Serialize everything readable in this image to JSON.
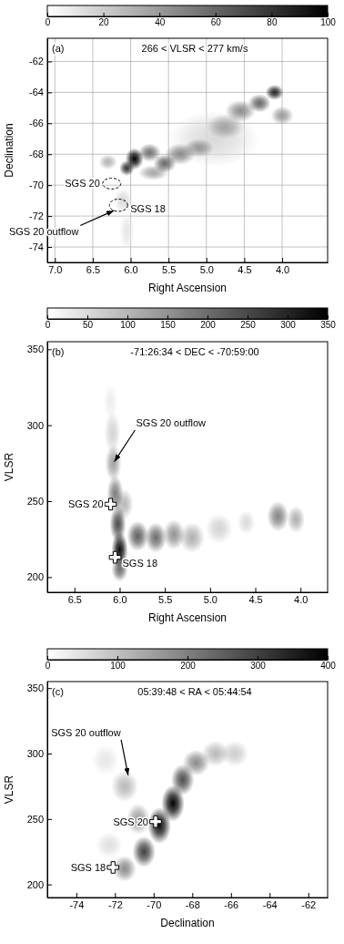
{
  "chart_data": [
    {
      "type": "heatmap",
      "panel_label": "(a)",
      "subtitle": "266 < VLSR < 277 km/s",
      "x_label": "Right Ascension",
      "y_label": "Declination",
      "xlim": [
        7.1,
        3.4
      ],
      "xticks": [
        {
          "value": 7,
          "label": "7.0"
        },
        6.5,
        {
          "value": 6,
          "label": "6.0"
        },
        5.5,
        {
          "value": 5,
          "label": "5.0"
        },
        4.5,
        {
          "value": 4,
          "label": "4.0"
        }
      ],
      "ylim": [
        -75,
        -60.5
      ],
      "yticks": [
        -74,
        -72,
        -70,
        -68,
        -66,
        -64,
        -62
      ],
      "grid": true,
      "colorbar": {
        "range": [
          0,
          100
        ],
        "ticks": [
          0,
          20,
          40,
          60,
          80,
          100
        ]
      },
      "clouds": {
        "x": [
          5.95,
          6.05,
          5.75,
          5.55,
          5.35,
          5.1,
          5.7,
          4.1,
          4.3,
          4.55,
          4.0,
          4.75,
          6.1,
          6.05,
          4.9,
          6.3
        ],
        "y": [
          -68.3,
          -68.9,
          -67.9,
          -68.6,
          -68,
          -67.6,
          -69.2,
          -64,
          -64.7,
          -65.2,
          -65.5,
          -66.2,
          -71,
          -73,
          -67,
          -68.5
        ],
        "x_width": [
          0.12,
          0.1,
          0.15,
          0.15,
          0.2,
          0.2,
          0.2,
          0.12,
          0.15,
          0.2,
          0.15,
          0.25,
          0.12,
          0.1,
          0.6,
          0.12
        ],
        "y_width": [
          0.7,
          0.5,
          0.6,
          0.6,
          0.7,
          0.6,
          0.5,
          0.5,
          0.6,
          0.7,
          0.6,
          0.8,
          0.8,
          1.2,
          1.8,
          0.5
        ],
        "values": [
          100,
          80,
          55,
          60,
          45,
          35,
          35,
          85,
          60,
          45,
          40,
          30,
          15,
          10,
          15,
          30
        ]
      },
      "regions": {
        "x": [
          6.25,
          6.16
        ],
        "y": [
          -69.9,
          -71.3
        ],
        "x_width": [
          0.12,
          0.12
        ],
        "y_width": [
          0.35,
          0.4
        ],
        "labels": [
          "SGS 20",
          "SGS 18"
        ]
      },
      "annotations": [
        {
          "text": "SGS 20 outflow",
          "x": 6.2,
          "y": -71.6
        }
      ]
    },
    {
      "type": "heatmap",
      "panel_label": "(b)",
      "subtitle": "-71:26:34 < DEC < -70:59:00",
      "x_label": "Right Ascension",
      "y_label": "VLSR",
      "xlim": [
        6.8,
        3.7
      ],
      "xticks": [
        6.5,
        {
          "value": 6,
          "label": "6.0"
        },
        5.5,
        {
          "value": 5,
          "label": "5.0"
        },
        4.5,
        {
          "value": 4,
          "label": "4.0"
        }
      ],
      "ylim": [
        190,
        355
      ],
      "yticks": [
        200,
        250,
        300,
        350
      ],
      "grid": false,
      "colorbar": {
        "range": [
          0,
          350
        ],
        "ticks": [
          0,
          50,
          100,
          150,
          200,
          250,
          300,
          350
        ]
      },
      "clouds": {
        "x": [
          6.0,
          6.02,
          6.05,
          6.07,
          6.08,
          6.1,
          5.8,
          5.6,
          5.4,
          5.2,
          4.9,
          4.25,
          4.05,
          4.6,
          6.0,
          5.95
        ],
        "y": [
          218,
          235,
          255,
          275,
          295,
          315,
          227,
          226,
          228,
          226,
          232,
          240,
          238,
          236,
          205,
          248
        ],
        "x_width": [
          0.09,
          0.09,
          0.09,
          0.09,
          0.09,
          0.08,
          0.12,
          0.12,
          0.12,
          0.14,
          0.15,
          0.12,
          0.1,
          0.1,
          0.09,
          0.1
        ],
        "y_width": [
          12,
          12,
          12,
          12,
          14,
          12,
          10,
          10,
          10,
          10,
          10,
          10,
          9,
          8,
          8,
          10
        ],
        "values": [
          340,
          250,
          180,
          130,
          60,
          25,
          220,
          200,
          150,
          110,
          60,
          170,
          110,
          50,
          200,
          100
        ]
      },
      "points": {
        "x": [
          6.1,
          6.05
        ],
        "y": [
          248,
          213
        ],
        "labels": [
          "SGS 20",
          "SGS 18"
        ]
      },
      "annotations": [
        {
          "text": "SGS 20 outflow",
          "x": 6.07,
          "y": 275
        }
      ]
    },
    {
      "type": "heatmap",
      "panel_label": "(c)",
      "subtitle": "05:39:48 < RA < 05:44:54",
      "x_label": "Declination",
      "y_label": "VLSR",
      "xlim": [
        -75.5,
        -61
      ],
      "xticks": [
        -74,
        -72,
        -70,
        -68,
        -66,
        -64,
        -62
      ],
      "ylim": [
        190,
        355
      ],
      "yticks": [
        200,
        250,
        300,
        350
      ],
      "grid": false,
      "colorbar": {
        "range": [
          0,
          400
        ],
        "ticks": [
          0,
          100,
          200,
          300,
          400
        ]
      },
      "clouds": {
        "x": [
          -71.5,
          -70.5,
          -69.7,
          -69,
          -68.5,
          -67.8,
          -66.8,
          -65.8,
          -71.5,
          -72.5,
          -70.8,
          -72.3
        ],
        "y": [
          212,
          225,
          245,
          262,
          280,
          293,
          300,
          300,
          275,
          295,
          250,
          230
        ],
        "x_width": [
          0.6,
          0.6,
          0.6,
          0.6,
          0.6,
          0.7,
          0.7,
          0.7,
          0.7,
          0.7,
          0.6,
          0.7
        ],
        "y_width": [
          10,
          12,
          14,
          14,
          12,
          10,
          10,
          10,
          12,
          12,
          12,
          10
        ],
        "values": [
          180,
          300,
          380,
          400,
          280,
          180,
          110,
          80,
          110,
          40,
          150,
          50
        ]
      },
      "points": {
        "x": [
          -69.9,
          -72.1
        ],
        "y": [
          248,
          213
        ],
        "labels": [
          "SGS 20",
          "SGS 18"
        ]
      },
      "annotations": [
        {
          "text": "SGS 20 outflow",
          "x": -71.3,
          "y": 282
        }
      ]
    }
  ]
}
